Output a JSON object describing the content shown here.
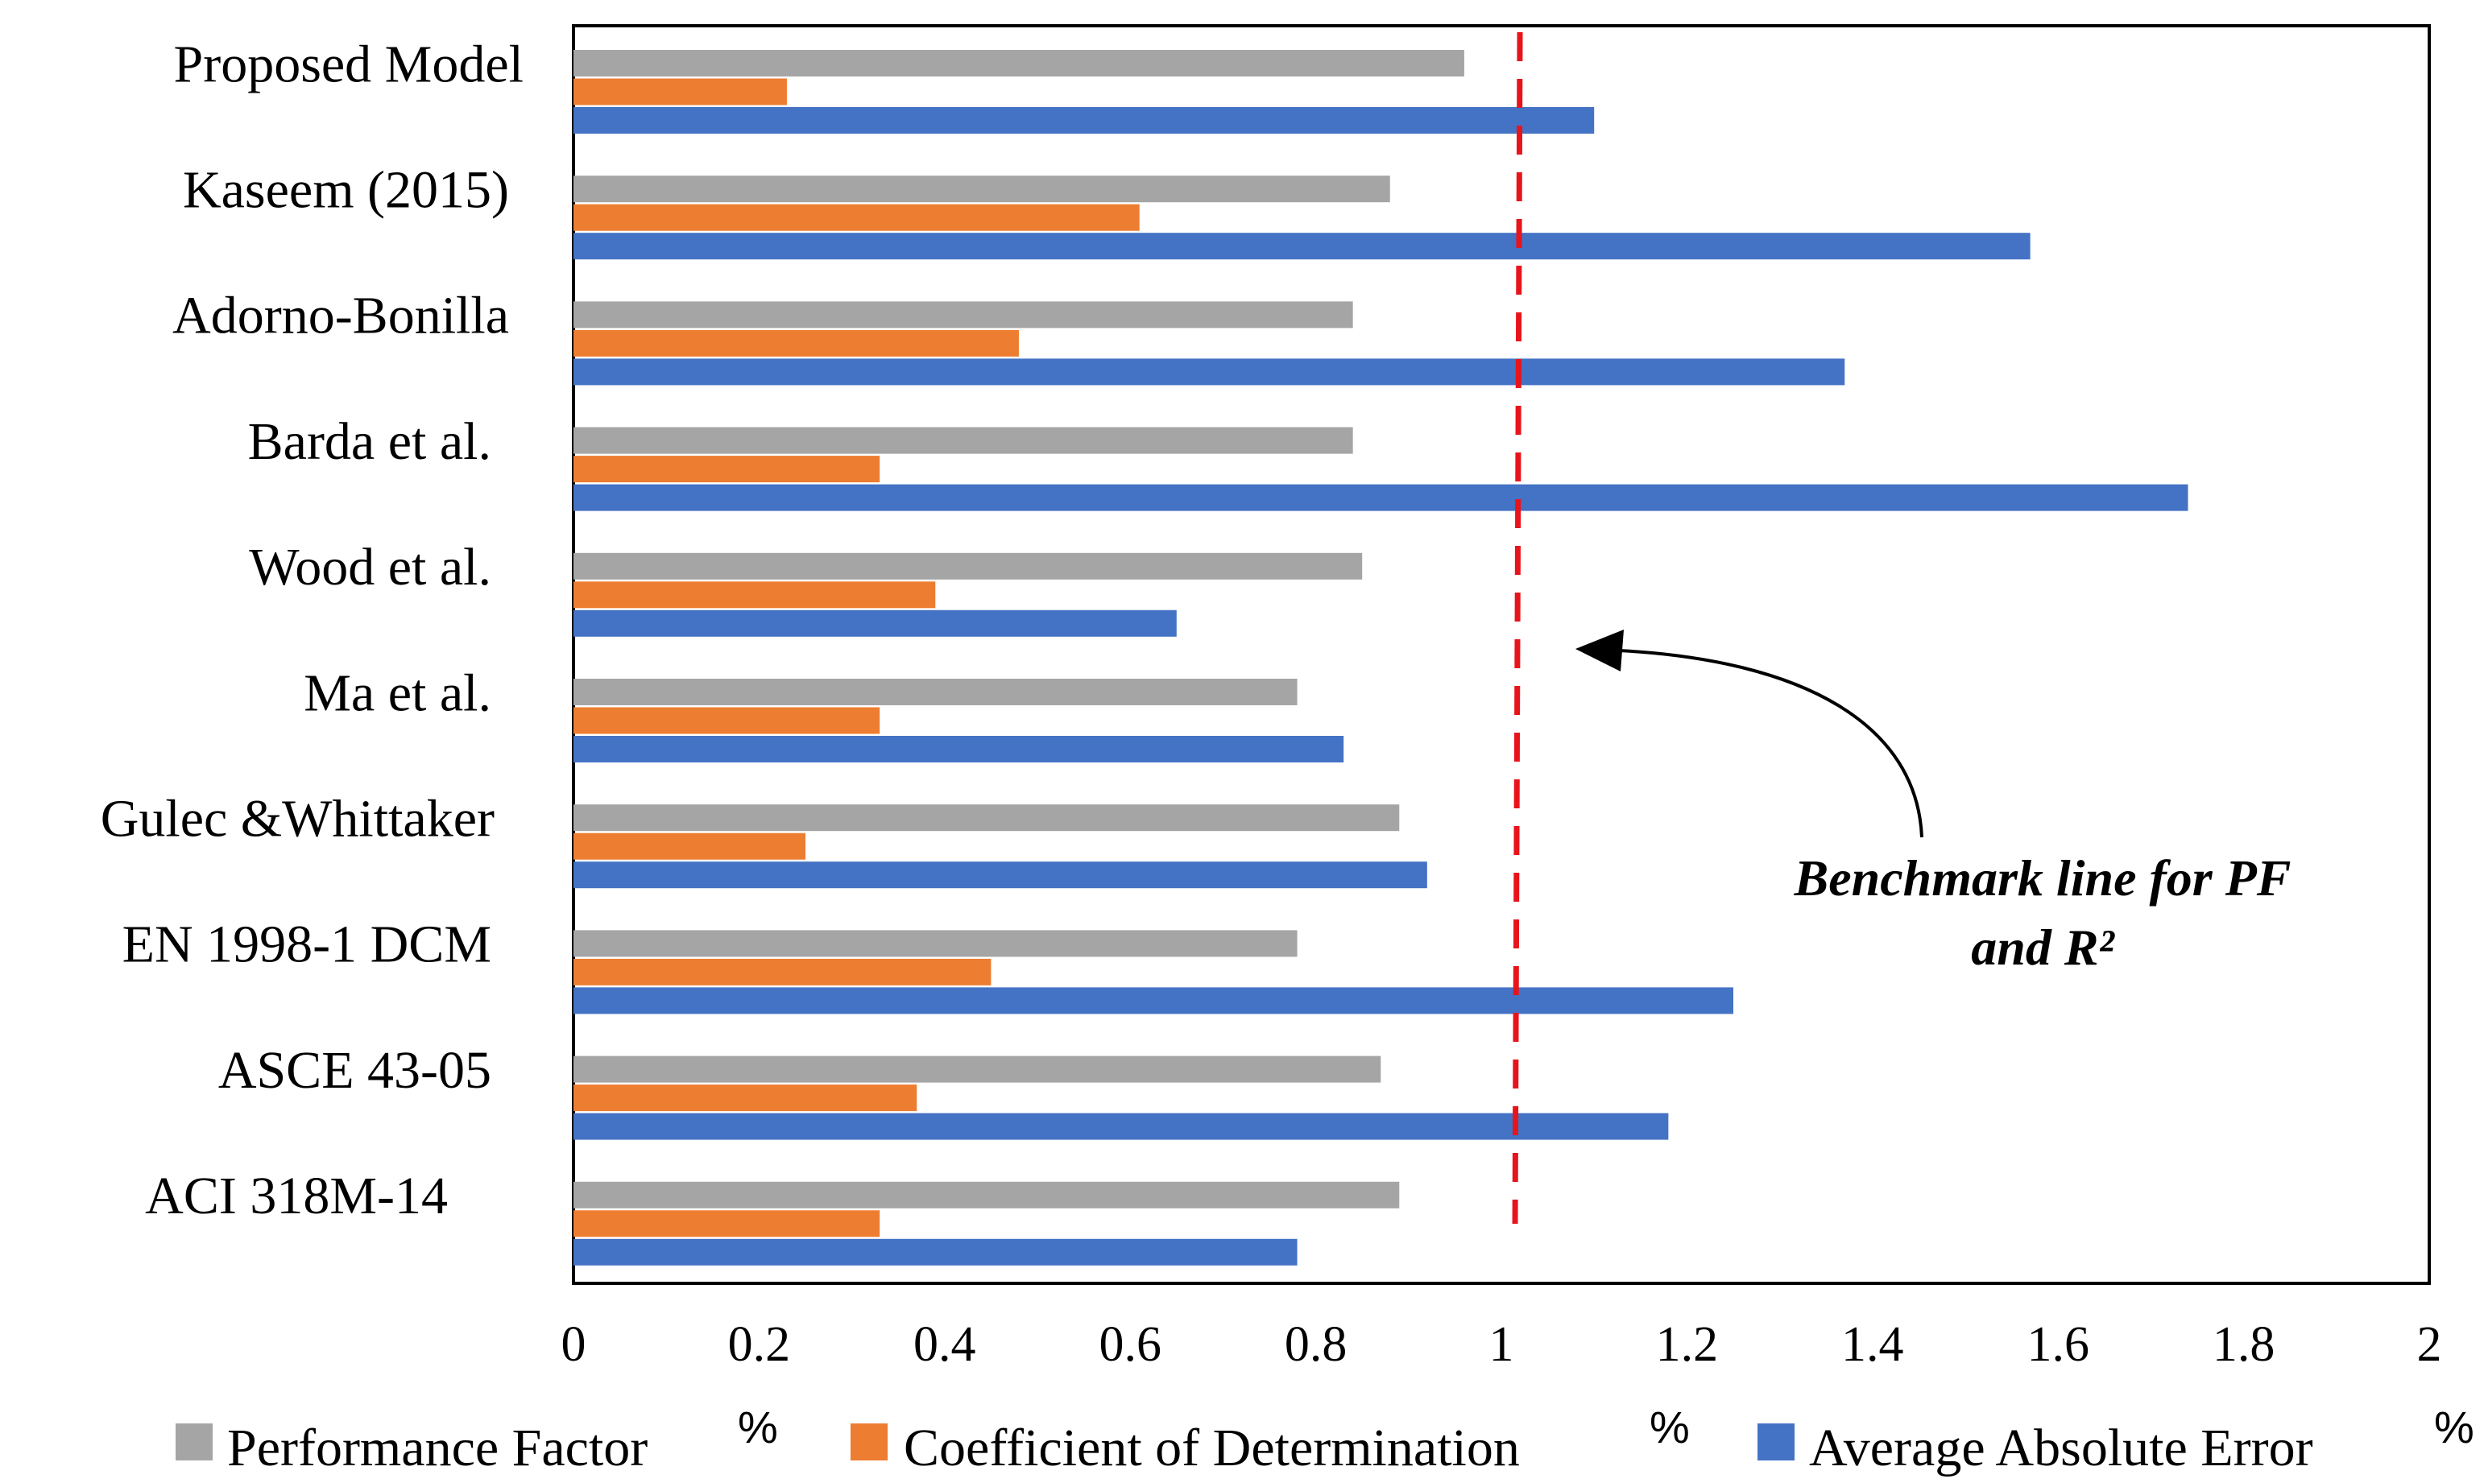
{
  "chart_data": {
    "type": "bar",
    "orientation": "horizontal",
    "categories": [
      "Proposed Model",
      "Kaseem (2015)",
      "Adorno-Bonilla",
      "Barda et al.",
      "Wood et al.",
      "Ma et al.",
      "Gulec &Whittaker",
      "EN 1998-1 DCM",
      "ASCE 43-05",
      "ACI 318M-14"
    ],
    "series": [
      {
        "name": "Performance Factor",
        "unit_mark": "%",
        "color": "#A5A5A5",
        "values": [
          0.96,
          0.88,
          0.84,
          0.84,
          0.85,
          0.78,
          0.89,
          0.78,
          0.87,
          0.89
        ]
      },
      {
        "name": "Coefficient of Determination",
        "unit_mark": "%",
        "color": "#ED7D31",
        "values": [
          0.23,
          0.61,
          0.48,
          0.33,
          0.39,
          0.33,
          0.25,
          0.45,
          0.37,
          0.33
        ]
      },
      {
        "name": "Average Absolute Error",
        "unit_mark": "%",
        "color": "#4472C4",
        "values": [
          1.1,
          1.57,
          1.37,
          1.74,
          0.65,
          0.83,
          0.92,
          1.25,
          1.18,
          0.78
        ]
      }
    ],
    "xlim": [
      0,
      2
    ],
    "xticks": [
      0,
      0.2,
      0.4,
      0.6,
      0.8,
      1,
      1.2,
      1.4,
      1.6,
      1.8,
      2
    ],
    "xtick_labels": [
      "0",
      "0.2",
      "0.4",
      "0.6",
      "0.8",
      "1",
      "1.2",
      "1.4",
      "1.6",
      "1.8",
      "2"
    ],
    "grid": false,
    "legend_position": "bottom",
    "benchmark": {
      "value": 1.02,
      "color": "#E8141B",
      "style": "dashed",
      "annotation_lines": [
        "Benchmark line for PF",
        "and R²"
      ]
    }
  }
}
